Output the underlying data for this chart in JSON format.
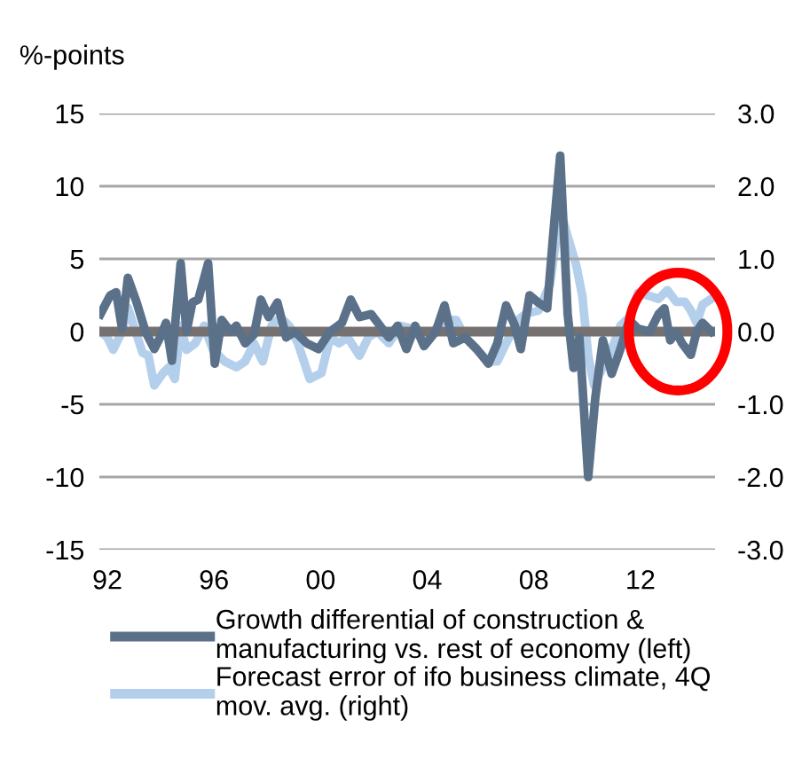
{
  "chart_data": {
    "type": "line",
    "ylabel": "%-points",
    "xlim": [
      1991.7,
      2014.8
    ],
    "xticks": [
      {
        "value": 1992,
        "label": "92"
      },
      {
        "value": 1996,
        "label": "96"
      },
      {
        "value": 2000,
        "label": "00"
      },
      {
        "value": 2004,
        "label": "04"
      },
      {
        "value": 2008,
        "label": "08"
      },
      {
        "value": 2012,
        "label": "12"
      }
    ],
    "ylim": [
      -15,
      15
    ],
    "yticks": [
      -15,
      -10,
      -5,
      0,
      5,
      10,
      15
    ],
    "y2lim": [
      -3,
      3
    ],
    "y2ticks": [
      {
        "value": -3,
        "label": "-3.0"
      },
      {
        "value": -2,
        "label": "-2.0"
      },
      {
        "value": -1,
        "label": "-1.0"
      },
      {
        "value": 0,
        "label": "0.0"
      },
      {
        "value": 1,
        "label": "1.0"
      },
      {
        "value": 2,
        "label": "2.0"
      },
      {
        "value": 3,
        "label": "3.0"
      }
    ],
    "grid": "y",
    "legend": "bottom",
    "marker": "none",
    "line_style": "solid",
    "ref_lines": [
      {
        "axis": "y",
        "value": 0,
        "color": "#767171"
      }
    ],
    "series": [
      {
        "name": "Growth differential of construction &\nmanufacturing vs. rest of economy (left)",
        "color": "#5a7189",
        "x": [
          1991.74,
          1992.11,
          1992.33,
          1992.55,
          1992.77,
          1993.1,
          1993.43,
          1993.76,
          1993.98,
          1994.2,
          1994.42,
          1994.75,
          1994.97,
          1995.19,
          1995.41,
          1995.78,
          1996.03,
          1996.29,
          1996.62,
          1996.84,
          1997.17,
          1997.5,
          1997.76,
          1998.05,
          1998.38,
          1998.71,
          1999.04,
          1999.48,
          1999.92,
          2000.36,
          2000.8,
          2001.13,
          2001.46,
          2001.9,
          2002.23,
          2002.56,
          2002.89,
          2003.22,
          2003.55,
          2003.88,
          2004.32,
          2004.65,
          2004.98,
          2005.42,
          2005.86,
          2006.3,
          2006.63,
          2006.96,
          2007.29,
          2007.51,
          2007.84,
          2008.17,
          2008.5,
          2008.72,
          2008.99,
          2009.27,
          2009.49,
          2009.71,
          2010.04,
          2010.31,
          2010.59,
          2010.92,
          2011.25,
          2011.58,
          2011.91,
          2012.35,
          2012.68,
          2012.9,
          2013.12,
          2013.34,
          2013.56,
          2013.89,
          2014.11,
          2014.33,
          2014.66
        ],
        "values": [
          1.2,
          2.5,
          2.7,
          0.2,
          3.7,
          2.0,
          0,
          -1.2,
          -0.4,
          0.6,
          -2.0,
          4.7,
          0,
          2.0,
          2.2,
          4.7,
          -2.2,
          0.8,
          0,
          0.4,
          -0.8,
          -0.2,
          2.2,
          1.0,
          2.0,
          -0.4,
          0,
          -0.8,
          -1.2,
          0,
          0.6,
          2.2,
          1.0,
          1.2,
          0.4,
          -0.4,
          0.4,
          -1.2,
          0.4,
          -1.0,
          0,
          1.8,
          -0.8,
          -0.4,
          -1.2,
          -2.2,
          -0.8,
          1.8,
          0.4,
          -1.2,
          2.5,
          2.0,
          1.6,
          6.5,
          12.1,
          1.2,
          -2.5,
          -0.4,
          -10.0,
          -4.5,
          -0.6,
          -2.9,
          -1.2,
          0.8,
          0.2,
          0,
          1.2,
          1.6,
          -0.6,
          0,
          -0.8,
          -1.6,
          0,
          0.6,
          0
        ]
      },
      {
        "name": "Forecast error of ifo business climate, 4Q\nmov. avg. (right)",
        "color": "#b4cfeb",
        "axis": "y2",
        "x": [
          1991.74,
          1992.0,
          1992.22,
          1992.55,
          1992.77,
          1992.99,
          1993.32,
          1993.54,
          1993.76,
          1994.09,
          1994.31,
          1994.53,
          1994.75,
          1994.97,
          1995.3,
          1995.63,
          1995.96,
          1996.4,
          1996.84,
          1997.17,
          1997.5,
          1997.83,
          1998.16,
          1998.49,
          1998.82,
          1999.15,
          1999.59,
          2000.03,
          2000.36,
          2000.69,
          2001.02,
          2001.46,
          2001.79,
          2002.12,
          2002.56,
          2003.0,
          2003.44,
          2003.88,
          2004.32,
          2004.65,
          2005.09,
          2005.42,
          2005.86,
          2006.3,
          2006.63,
          2006.96,
          2007.4,
          2007.73,
          2008.17,
          2008.61,
          2008.99,
          2009.27,
          2009.6,
          2009.82,
          2010.04,
          2010.26,
          2010.59,
          2010.92,
          2011.25,
          2011.58,
          2011.91,
          2012.35,
          2012.68,
          2013.01,
          2013.34,
          2013.67,
          2013.89,
          2014.11,
          2014.33,
          2014.66
        ],
        "values": [
          0,
          -0.08,
          -0.25,
          0,
          0.33,
          0.08,
          -0.29,
          -0.33,
          -0.74,
          -0.57,
          -0.49,
          -0.65,
          0.08,
          -0.25,
          -0.16,
          0.08,
          -0.25,
          -0.41,
          -0.49,
          -0.41,
          -0.16,
          -0.41,
          0.08,
          0.2,
          0.08,
          -0.16,
          -0.65,
          -0.57,
          -0.08,
          -0.16,
          -0.08,
          -0.33,
          -0.08,
          0,
          -0.16,
          0.08,
          0.04,
          -0.12,
          0.04,
          0.16,
          0.16,
          -0.08,
          -0.25,
          -0.41,
          -0.41,
          -0.16,
          0.16,
          0.25,
          0.29,
          0.65,
          1.68,
          1.31,
          0.9,
          0.49,
          -0.33,
          -0.74,
          -0.49,
          -0.25,
          0.08,
          0.2,
          0.53,
          0.49,
          0.45,
          0.57,
          0.41,
          0.41,
          0.29,
          0.12,
          0.37,
          0.45
        ]
      }
    ]
  }
}
